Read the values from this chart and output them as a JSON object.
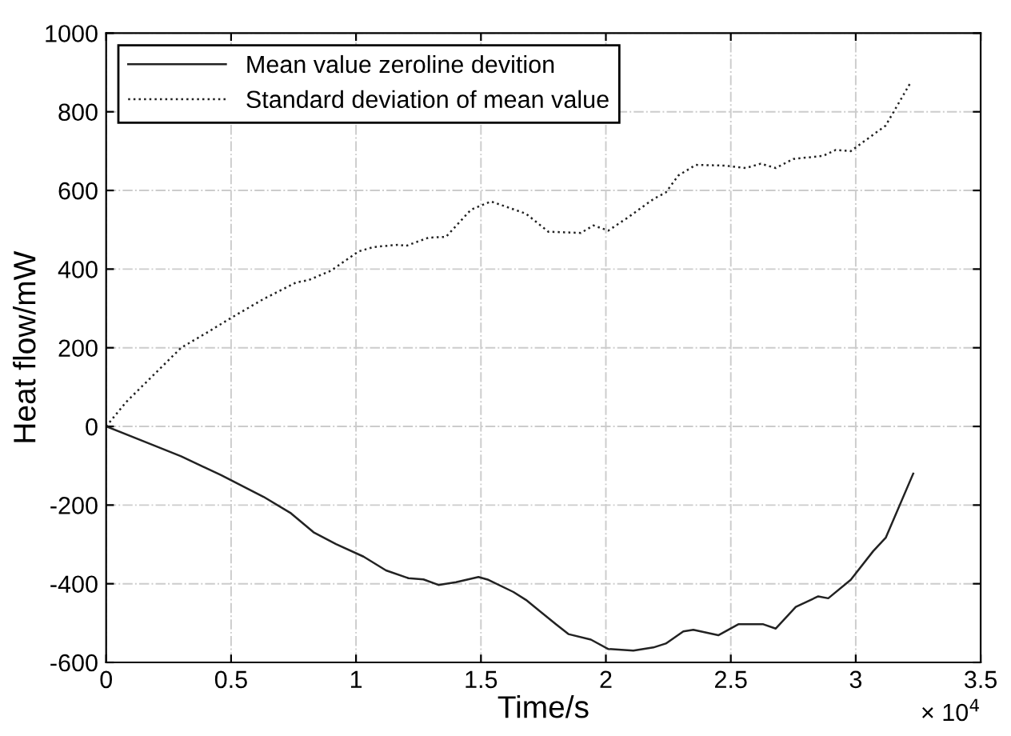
{
  "chart_data": {
    "type": "line",
    "xlabel": "Time/s",
    "ylabel": "Heat flow/mW",
    "annotations": [
      "× 10$^{4}$"
    ],
    "xlim": [
      0,
      3.5
    ],
    "ylim": [
      -600,
      1000
    ],
    "xticks": [
      0,
      0.5,
      1,
      1.5,
      2,
      2.5,
      3,
      3.5
    ],
    "yticks": [
      -600,
      -400,
      -200,
      0,
      200,
      400,
      600,
      800,
      1000
    ],
    "grid": true,
    "legend": "top left",
    "series": [
      {
        "name": "Mean value zeroline devition",
        "color": "#222222",
        "line_style": "solid",
        "x": [
          0,
          0.19,
          0.3,
          0.46,
          0.63,
          0.74,
          0.83,
          0.92,
          1.03,
          1.12,
          1.21,
          1.27,
          1.33,
          1.4,
          1.49,
          1.53,
          1.63,
          1.68,
          1.8,
          1.85,
          1.94,
          2.01,
          2.11,
          2.19,
          2.24,
          2.31,
          2.35,
          2.45,
          2.53,
          2.63,
          2.68,
          2.76,
          2.85,
          2.89,
          2.98,
          3.07,
          3.12,
          3.23
        ],
        "values": [
          0,
          -48,
          -76,
          -124,
          -179,
          -221,
          -269,
          -299,
          -331,
          -366,
          -386,
          -389,
          -403,
          -396,
          -383,
          -390,
          -421,
          -441,
          -503,
          -528,
          -542,
          -566,
          -570,
          -562,
          -552,
          -521,
          -517,
          -531,
          -503,
          -503,
          -514,
          -459,
          -432,
          -437,
          -390,
          -317,
          -283,
          -120
        ]
      },
      {
        "name": "Standard deviation of mean value",
        "color": "#222222",
        "line_style": "dotted",
        "x": [
          0,
          0.08,
          0.19,
          0.3,
          0.41,
          0.5,
          0.63,
          0.76,
          0.81,
          0.9,
          1.01,
          1.07,
          1.17,
          1.2,
          1.29,
          1.36,
          1.46,
          1.54,
          1.68,
          1.77,
          1.9,
          1.95,
          2.01,
          2.09,
          2.19,
          2.24,
          2.29,
          2.36,
          2.48,
          2.56,
          2.62,
          2.68,
          2.75,
          2.87,
          2.92,
          2.98,
          3.12,
          3.22
        ],
        "values": [
          0,
          62,
          131,
          200,
          241,
          276,
          324,
          366,
          372,
          396,
          445,
          456,
          462,
          459,
          480,
          482,
          551,
          572,
          541,
          495,
          492,
          511,
          498,
          532,
          578,
          595,
          638,
          665,
          663,
          657,
          668,
          657,
          680,
          688,
          703,
          700,
          765,
          875
        ]
      }
    ]
  }
}
